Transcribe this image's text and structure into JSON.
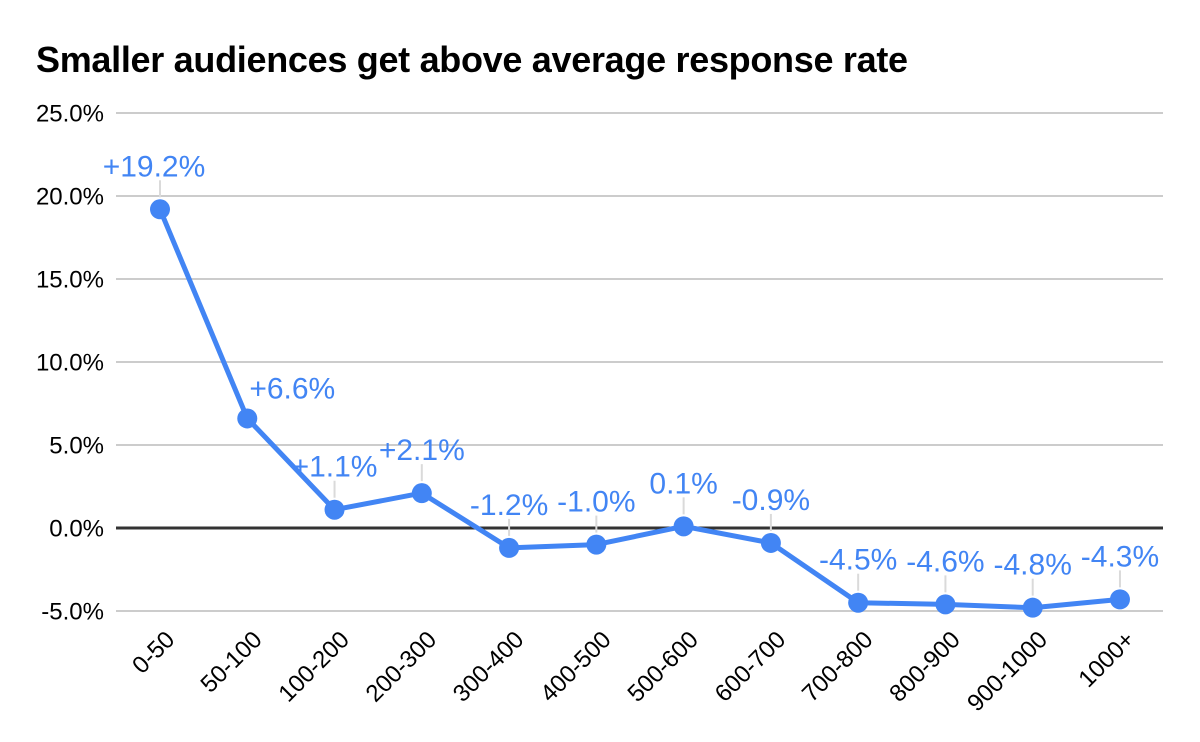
{
  "chart_data": {
    "type": "line",
    "title": "Smaller audiences get above average response rate",
    "categories": [
      "0-50",
      "50-100",
      "100-200",
      "200-300",
      "300-400",
      "400-500",
      "500-600",
      "600-700",
      "700-800",
      "800-900",
      "900-1000",
      "1000+"
    ],
    "values": [
      19.2,
      6.6,
      1.1,
      2.1,
      -1.2,
      -1.0,
      0.1,
      -0.9,
      -4.5,
      -4.6,
      -4.8,
      -4.3
    ],
    "point_labels": [
      "+19.2%",
      "+6.6%",
      "+1.1%",
      "+2.1%",
      "-1.2%",
      "-1.0%",
      "0.1%",
      "-0.9%",
      "-4.5%",
      "-4.6%",
      "-4.8%",
      "-4.3%"
    ],
    "xlabel": "",
    "ylabel": "",
    "ylim": [
      -5,
      25
    ],
    "ytick_step": 5,
    "yticks": [
      {
        "v": 25,
        "label": "25.0%"
      },
      {
        "v": 20,
        "label": "20.0%"
      },
      {
        "v": 15,
        "label": "15.0%"
      },
      {
        "v": 10,
        "label": "10.0%"
      },
      {
        "v": 5,
        "label": "5.0%"
      },
      {
        "v": 0,
        "label": "0.0%"
      },
      {
        "v": -5,
        "label": "-5.0%"
      }
    ],
    "grid": true,
    "legend": "none",
    "colors": {
      "series": "#4285f4",
      "data_label": "#4285f4",
      "grid": "#cccccc",
      "zero_line": "#333333",
      "axis_text": "#000000",
      "title": "#000000",
      "leader": "#dadada",
      "background": "#ffffff"
    },
    "label_overrides": {
      "0": {
        "dx": -6
      },
      "1": {
        "dx": 45,
        "dy": 13,
        "leader": false
      }
    }
  }
}
